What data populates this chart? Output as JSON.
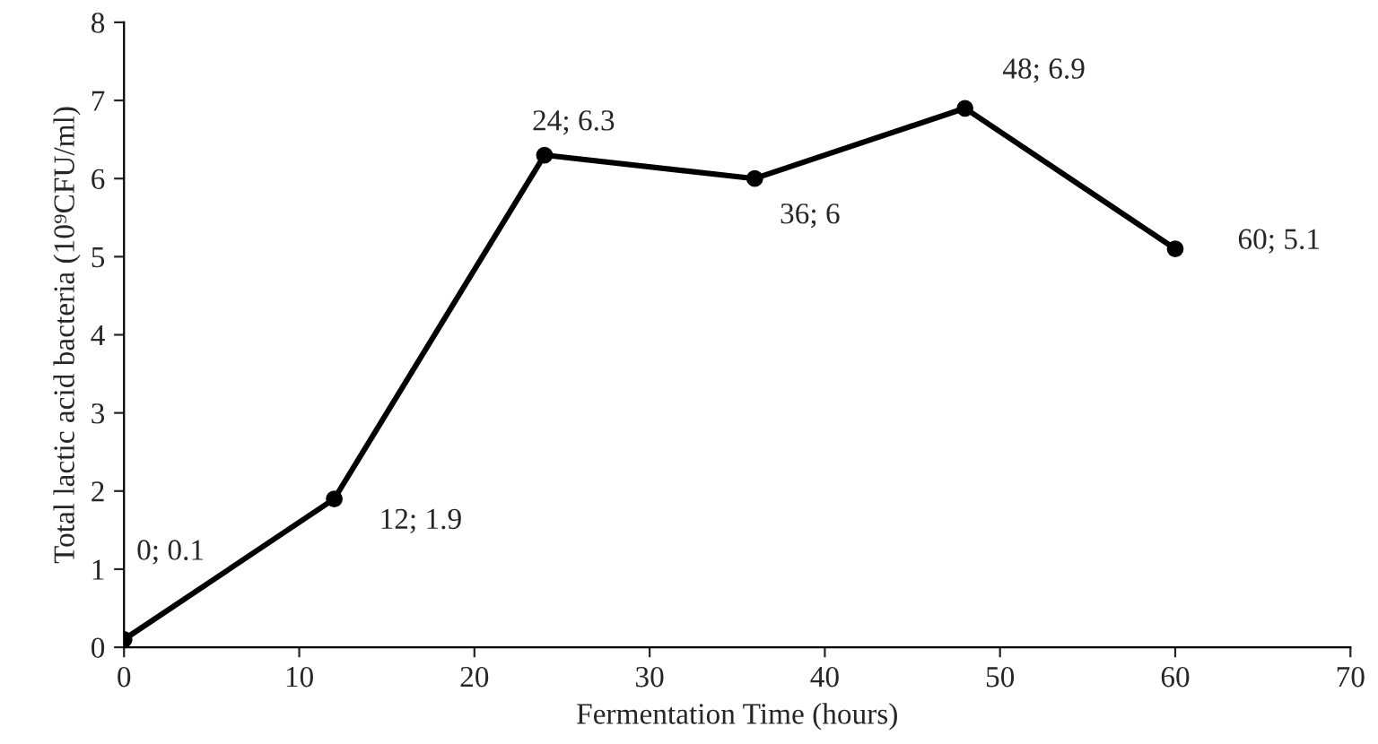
{
  "chart_data": {
    "type": "line",
    "xlabel": "Fermentation Time (hours)",
    "ylabel": "Total lactic acid bacteria (10⁹CFU/ml)",
    "x": [
      0,
      12,
      24,
      36,
      48,
      60
    ],
    "series": [
      {
        "color": "#000000",
        "values": [
          0.1,
          1.9,
          6.3,
          6,
          6.9,
          5.1
        ]
      }
    ],
    "xlim": [
      0,
      70
    ],
    "xticks": [
      0,
      10,
      20,
      30,
      40,
      50,
      60,
      70
    ],
    "ylim": [
      0,
      8
    ],
    "yticks": [
      0,
      1,
      2,
      3,
      4,
      5,
      6,
      7,
      8
    ],
    "marker": "circle",
    "line_style": "solid",
    "annotations": [
      {
        "text": "0; 0.1",
        "x": 0,
        "y": 0.1
      },
      {
        "text": "12; 1.9",
        "x": 12,
        "y": 1.9
      },
      {
        "text": "24; 6.3",
        "x": 24,
        "y": 6.3
      },
      {
        "text": "36; 6",
        "x": 36,
        "y": 6
      },
      {
        "text": "48; 6.9",
        "x": 48,
        "y": 6.9
      },
      {
        "text": "60; 5.1",
        "x": 60,
        "y": 5.1
      }
    ]
  }
}
